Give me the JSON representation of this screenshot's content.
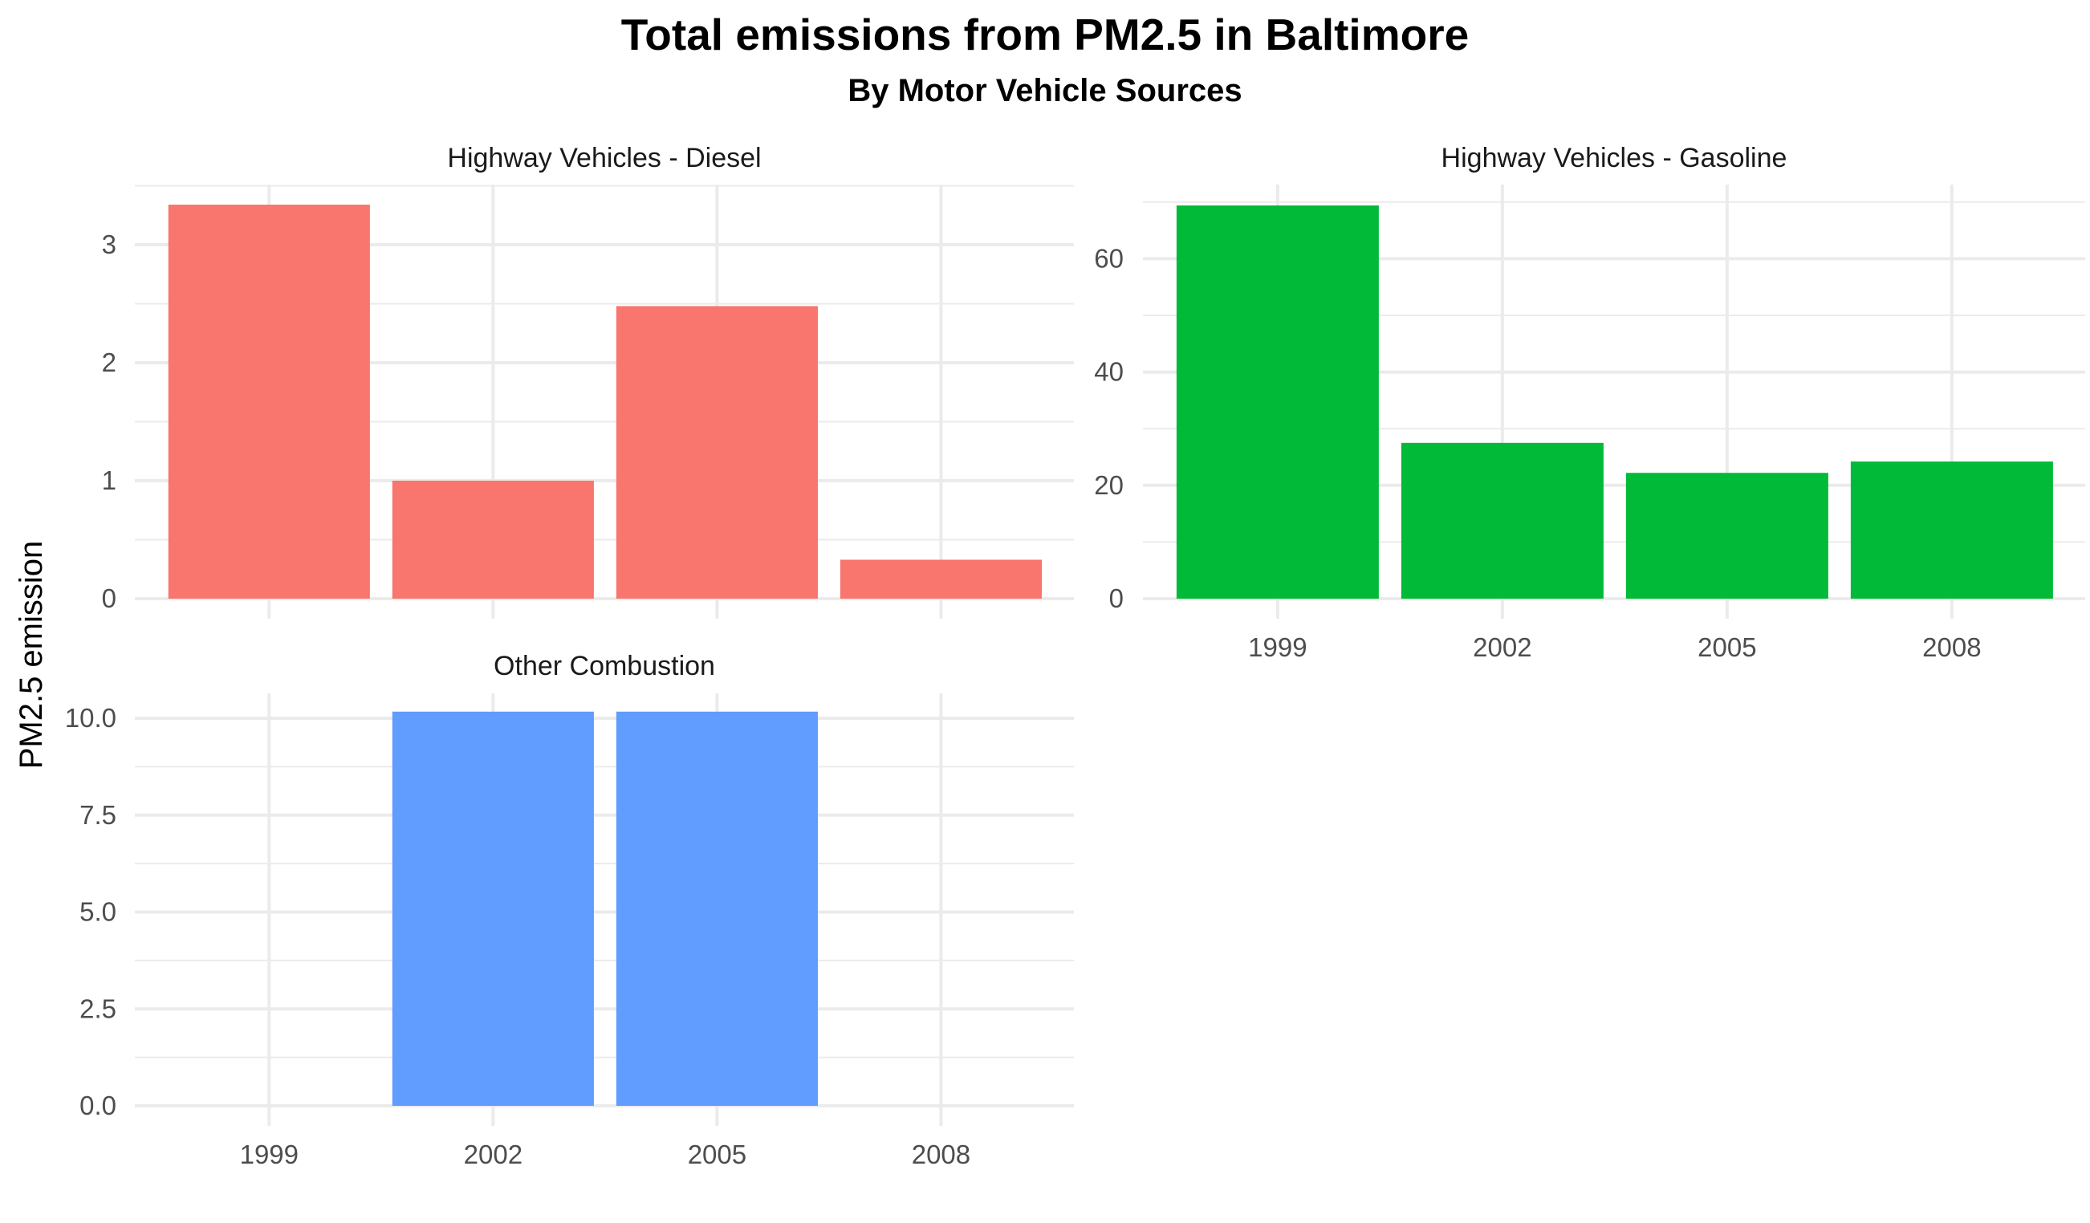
{
  "chart_data": {
    "type": "bar",
    "title": "Total emissions from PM2.5 in Baltimore",
    "subtitle": "By Motor Vehicle Sources",
    "xlabel": "",
    "ylabel": "PM2.5 emission",
    "categories": [
      "1999",
      "2002",
      "2005",
      "2008"
    ],
    "grid": true,
    "legend": "none",
    "panels": [
      {
        "name": "Highway Vehicles - Diesel",
        "color": "#F8766D",
        "values": [
          3.34,
          1.0,
          2.48,
          0.33
        ],
        "ylim": [
          0,
          3.5
        ],
        "yticks": [
          0,
          1,
          2,
          3
        ],
        "ytick_labels": [
          "0",
          "1",
          "2",
          "3"
        ]
      },
      {
        "name": "Highway Vehicles - Gasoline",
        "color": "#00BA38",
        "values": [
          69.4,
          27.5,
          22.2,
          24.2
        ],
        "ylim": [
          0,
          70
        ],
        "yticks": [
          0,
          20,
          40,
          60
        ],
        "ytick_labels": [
          "0",
          "20",
          "40",
          "60"
        ]
      },
      {
        "name": "Other Combustion",
        "color": "#619CFF",
        "values": [
          0,
          10.17,
          10.17,
          0
        ],
        "ylim": [
          0,
          10.5
        ],
        "yticks": [
          0,
          2.5,
          5,
          7.5,
          10
        ],
        "ytick_labels": [
          "0.0",
          "2.5",
          "5.0",
          "7.5",
          "10.0"
        ]
      }
    ]
  }
}
